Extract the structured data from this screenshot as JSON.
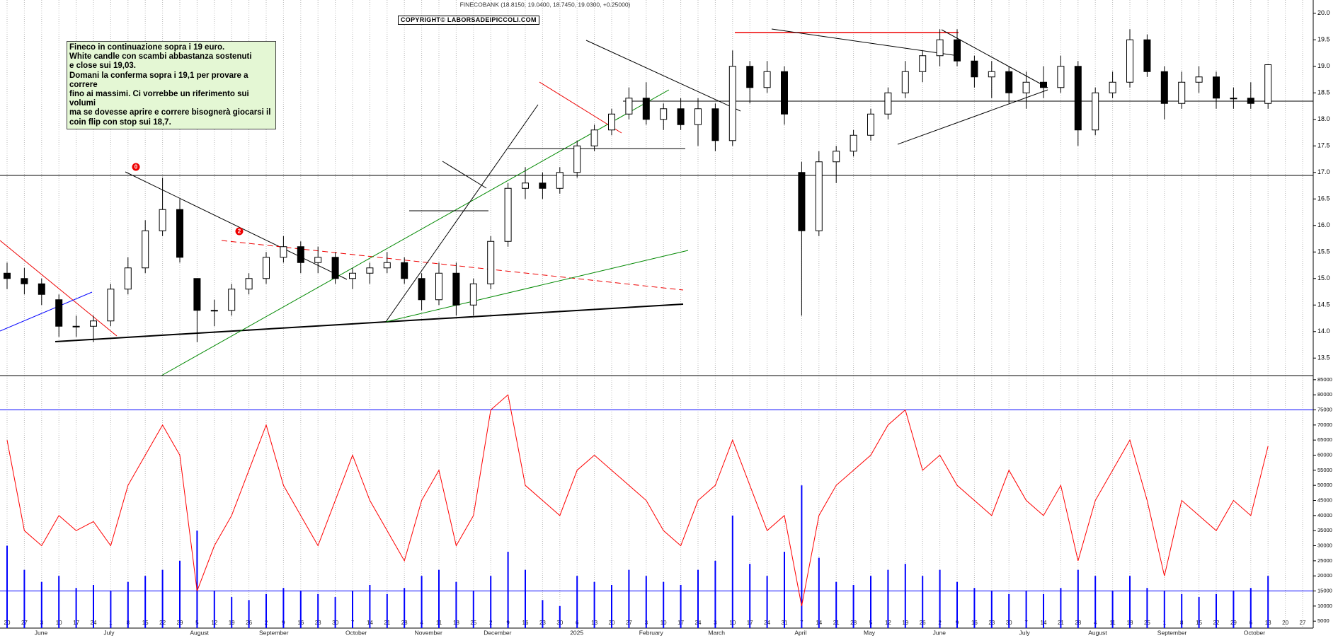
{
  "chart_data": [
    {
      "type": "candlestick",
      "title": "FINECOBANK (18.8150, 19.0400, 18.7450, 19.0300, +0.25000)",
      "watermark": "COPYRIGHT© LABORSADEIPICCOLI.COM",
      "annotation": [
        "Fineco in continuazione sopra i 19 euro.",
        "White candle con scambi abbastanza sostenuti",
        "e close sui 19,03.",
        "Domani la conferma sopra i 19,1 per provare a correre",
        "fino ai massimi. Ci vorrebbe un riferimento sui volumi",
        "ma se dovesse aprire e correre bisognerà giocarsi il",
        "coin flip con stop sui 18,7."
      ],
      "markers": [
        "0",
        "2"
      ],
      "categories": [
        "20",
        "27",
        "3",
        "10",
        "17",
        "24",
        "1",
        "8",
        "15",
        "22",
        "29",
        "5",
        "12",
        "19",
        "26",
        "2",
        "9",
        "16",
        "23",
        "30",
        "7",
        "14",
        "21",
        "28",
        "4",
        "11",
        "18",
        "25",
        "2",
        "9",
        "16",
        "23",
        "30",
        "6",
        "13",
        "20",
        "27",
        "3",
        "10",
        "17",
        "24",
        "3",
        "10",
        "17",
        "24",
        "31",
        "7",
        "14",
        "21",
        "28",
        "5",
        "12",
        "19",
        "26",
        "2",
        "9",
        "16",
        "23",
        "30",
        "7",
        "14",
        "21",
        "28",
        "4",
        "11",
        "18",
        "25",
        "1",
        "8",
        "15",
        "22",
        "29",
        "6",
        "13",
        "20",
        "27"
      ],
      "month_labels": [
        null,
        null,
        "June",
        null,
        null,
        null,
        "July",
        null,
        null,
        null,
        null,
        "August",
        null,
        null,
        null,
        "September",
        null,
        null,
        null,
        null,
        "October",
        null,
        null,
        null,
        "November",
        null,
        null,
        null,
        "December",
        null,
        null,
        null,
        null,
        "2025",
        null,
        null,
        null,
        "February",
        null,
        null,
        null,
        "March",
        null,
        null,
        null,
        null,
        "April",
        null,
        null,
        null,
        "May",
        null,
        null,
        null,
        "June",
        null,
        null,
        null,
        null,
        "July",
        null,
        null,
        null,
        "August",
        null,
        null,
        null,
        "September",
        null,
        null,
        null,
        null,
        "October",
        null,
        null,
        null
      ],
      "open": [
        15.1,
        15.0,
        14.9,
        14.6,
        14.1,
        14.1,
        14.2,
        14.8,
        15.2,
        15.9,
        16.3,
        15.0,
        14.4,
        14.4,
        14.8,
        15.0,
        15.4,
        15.6,
        15.3,
        15.4,
        15.0,
        15.1,
        15.2,
        15.3,
        15.0,
        14.6,
        15.1,
        14.5,
        14.9,
        15.7,
        16.7,
        16.8,
        16.7,
        17.0,
        17.5,
        17.8,
        18.1,
        18.4,
        18.0,
        18.2,
        17.9,
        18.2,
        17.6,
        19.0,
        18.6,
        18.9,
        17.0,
        15.9,
        17.2,
        17.4,
        17.7,
        18.1,
        18.5,
        18.9,
        19.2,
        19.5,
        19.1,
        18.8,
        18.9,
        18.5,
        18.7,
        18.6,
        19.0,
        17.8,
        18.5,
        18.7,
        19.5,
        18.9,
        18.3,
        18.7,
        18.8,
        18.4,
        18.4,
        18.3,
        null,
        null
      ],
      "high": [
        15.3,
        15.2,
        15.0,
        14.7,
        14.3,
        14.3,
        14.9,
        15.4,
        16.1,
        16.9,
        16.5,
        15.0,
        14.6,
        14.9,
        15.1,
        15.5,
        15.8,
        15.7,
        15.6,
        15.5,
        15.2,
        15.3,
        15.5,
        15.4,
        15.1,
        15.3,
        15.3,
        15.0,
        15.8,
        16.8,
        17.1,
        17.0,
        17.1,
        17.6,
        17.9,
        18.2,
        18.6,
        18.7,
        18.3,
        18.4,
        18.4,
        18.3,
        19.3,
        19.1,
        19.1,
        19.0,
        17.2,
        17.4,
        17.5,
        17.8,
        18.2,
        18.6,
        19.1,
        19.3,
        19.7,
        19.7,
        19.2,
        19.1,
        19.0,
        18.9,
        19.0,
        19.2,
        19.1,
        18.6,
        18.9,
        19.7,
        19.6,
        19.0,
        18.9,
        19.0,
        18.9,
        18.6,
        18.7,
        19.04,
        null,
        null
      ],
      "low": [
        14.8,
        14.7,
        14.5,
        13.9,
        13.9,
        13.8,
        14.1,
        14.7,
        15.1,
        15.8,
        15.3,
        13.8,
        14.1,
        14.3,
        14.7,
        14.9,
        15.3,
        15.1,
        15.1,
        14.9,
        14.8,
        14.9,
        15.1,
        14.9,
        14.4,
        14.5,
        14.3,
        14.3,
        14.8,
        15.6,
        16.5,
        16.5,
        16.6,
        16.9,
        17.4,
        17.7,
        18.0,
        17.9,
        17.8,
        17.8,
        17.5,
        17.4,
        17.5,
        18.3,
        18.5,
        17.9,
        14.3,
        15.8,
        16.8,
        17.3,
        17.6,
        18.0,
        18.4,
        18.7,
        19.0,
        19.0,
        18.6,
        18.4,
        18.3,
        18.2,
        18.4,
        18.5,
        17.5,
        17.7,
        18.4,
        18.6,
        18.8,
        18.0,
        18.2,
        18.5,
        18.2,
        18.2,
        18.2,
        18.2,
        null,
        null
      ],
      "close": [
        15.0,
        14.9,
        14.7,
        14.1,
        14.1,
        14.2,
        14.8,
        15.2,
        15.9,
        16.3,
        15.4,
        14.4,
        14.4,
        14.8,
        15.0,
        15.4,
        15.6,
        15.3,
        15.4,
        15.0,
        15.1,
        15.2,
        15.3,
        15.0,
        14.6,
        15.1,
        14.5,
        14.9,
        15.7,
        16.7,
        16.8,
        16.7,
        17.0,
        17.5,
        17.8,
        18.1,
        18.4,
        18.0,
        18.2,
        17.9,
        18.2,
        17.6,
        19.0,
        18.6,
        18.9,
        18.1,
        15.9,
        17.2,
        17.4,
        17.7,
        18.1,
        18.5,
        18.9,
        19.2,
        19.5,
        19.1,
        18.8,
        18.9,
        18.5,
        18.7,
        18.6,
        19.0,
        17.8,
        18.5,
        18.7,
        19.5,
        18.9,
        18.3,
        18.7,
        18.8,
        18.4,
        18.4,
        18.3,
        19.03,
        null,
        null
      ],
      "up_color": "#ffffff",
      "down_color": "#000000",
      "edge_color": "#000000",
      "ylim": [
        13.17,
        20.25
      ],
      "yticks": [
        13.5,
        {
          "value": 14,
          "label": "14.0"
        },
        14.5,
        {
          "value": 15,
          "label": "15.0"
        },
        15.5,
        {
          "value": 16,
          "label": "16.0"
        },
        16.5,
        {
          "value": 17,
          "label": "17.0"
        },
        17.5,
        {
          "value": 18,
          "label": "18.0"
        },
        18.5,
        {
          "value": 19,
          "label": "19.0"
        },
        19.5,
        {
          "value": 20,
          "label": "20.0"
        }
      ]
    },
    {
      "type": "bar_line",
      "values": [
        30000,
        22000,
        18000,
        20000,
        16000,
        17000,
        15000,
        18000,
        20000,
        22000,
        25000,
        35000,
        15000,
        13000,
        12000,
        14000,
        16000,
        15000,
        14000,
        13000,
        15000,
        17000,
        14000,
        16000,
        20000,
        22000,
        18000,
        15000,
        20000,
        28000,
        22000,
        12000,
        10000,
        20000,
        18000,
        17000,
        22000,
        20000,
        18000,
        17000,
        22000,
        25000,
        40000,
        24000,
        20000,
        28000,
        50000,
        26000,
        18000,
        17000,
        20000,
        22000,
        24000,
        20000,
        22000,
        18000,
        16000,
        15000,
        14000,
        15000,
        14000,
        16000,
        22000,
        20000,
        15000,
        20000,
        16000,
        15000,
        14000,
        13000,
        14000,
        15000,
        16000,
        20000,
        null,
        null
      ],
      "color": "#0000ff",
      "series": [
        {
          "color": "#ff0000",
          "values": [
            65000,
            35000,
            30000,
            40000,
            35000,
            38000,
            30000,
            50000,
            60000,
            70000,
            60000,
            15000,
            30000,
            40000,
            55000,
            70000,
            50000,
            40000,
            30000,
            45000,
            60000,
            45000,
            35000,
            25000,
            45000,
            55000,
            30000,
            40000,
            75000,
            80000,
            50000,
            45000,
            40000,
            55000,
            60000,
            55000,
            50000,
            45000,
            35000,
            30000,
            45000,
            50000,
            65000,
            50000,
            35000,
            40000,
            10000,
            40000,
            50000,
            55000,
            60000,
            70000,
            75000,
            55000,
            60000,
            50000,
            45000,
            40000,
            55000,
            45000,
            40000,
            50000,
            25000,
            45000,
            55000,
            65000,
            45000,
            20000,
            45000,
            40000,
            35000,
            45000,
            40000,
            63000,
            null,
            null
          ]
        }
      ],
      "reference_lines": [
        75000,
        15000
      ],
      "reference_color": "#0000ff",
      "ylim": [
        2700,
        85900
      ],
      "yticks": [
        5000,
        10000,
        15000,
        20000,
        25000,
        30000,
        35000,
        40000,
        45000,
        50000,
        55000,
        60000,
        65000,
        70000,
        75000,
        80000,
        85000
      ]
    }
  ]
}
